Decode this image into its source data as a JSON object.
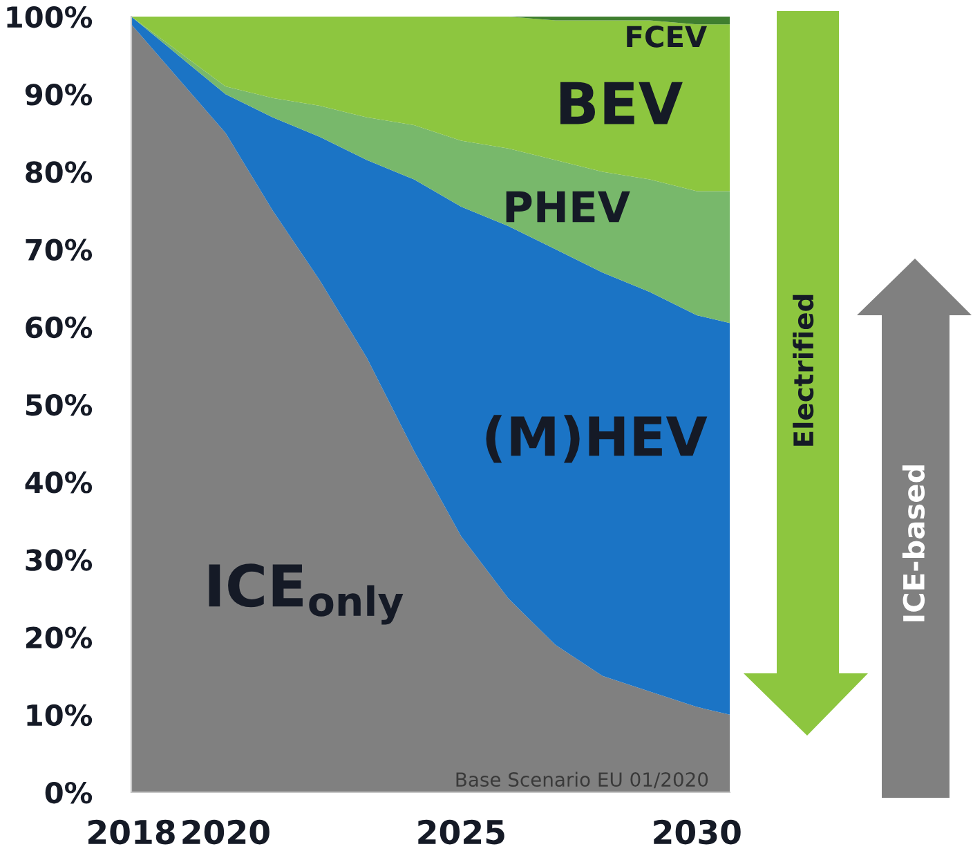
{
  "chart_data": {
    "type": "area",
    "stacked": true,
    "x": [
      2018,
      2020,
      2021,
      2022,
      2023,
      2024,
      2025,
      2026,
      2027,
      2028,
      2029,
      2030,
      2030.7
    ],
    "xlim": [
      2018,
      2030.7
    ],
    "xticks": [
      2018,
      2020,
      2025,
      2030
    ],
    "ylim": [
      0,
      100
    ],
    "yticks": [
      {
        "value": 0,
        "label": "0%"
      },
      {
        "value": 10,
        "label": "10%"
      },
      {
        "value": 20,
        "label": "20%"
      },
      {
        "value": 30,
        "label": "30%"
      },
      {
        "value": 40,
        "label": "40%"
      },
      {
        "value": 50,
        "label": "50%"
      },
      {
        "value": 60,
        "label": "60%"
      },
      {
        "value": 70,
        "label": "70%"
      },
      {
        "value": 80,
        "label": "80%"
      },
      {
        "value": 90,
        "label": "90%"
      },
      {
        "value": 100,
        "label": "100%"
      }
    ],
    "series": [
      {
        "name": "ICE$_{only}$",
        "color": "#808080",
        "values": [
          99,
          85,
          75,
          66,
          56,
          44,
          33,
          25,
          19,
          15,
          13,
          11,
          10
        ]
      },
      {
        "name": "(M)HEV",
        "color": "#1b74c5",
        "values": [
          1,
          5,
          12,
          18.5,
          25.5,
          35,
          42.5,
          48,
          51,
          52,
          51.5,
          50.5,
          50.5
        ]
      },
      {
        "name": "PHEV",
        "color": "#78b86b",
        "values": [
          0,
          1,
          2.5,
          4,
          5.5,
          7,
          8.5,
          10,
          11.5,
          13,
          14.5,
          16,
          17
        ]
      },
      {
        "name": "BEV",
        "color": "#8dc63f",
        "values": [
          0,
          9,
          10.5,
          11.5,
          13,
          14,
          16,
          17,
          18,
          19.5,
          20.5,
          21.5,
          21.5
        ]
      },
      {
        "name": "FCEV",
        "color": "#3f7f2f",
        "values": [
          0,
          0,
          0,
          0,
          0,
          0,
          0,
          0,
          0.5,
          0.5,
          0.5,
          1,
          1
        ]
      }
    ],
    "annotations": [
      "Electrified",
      "ICE-based",
      "Base Scenario EU 01/2020"
    ]
  }
}
